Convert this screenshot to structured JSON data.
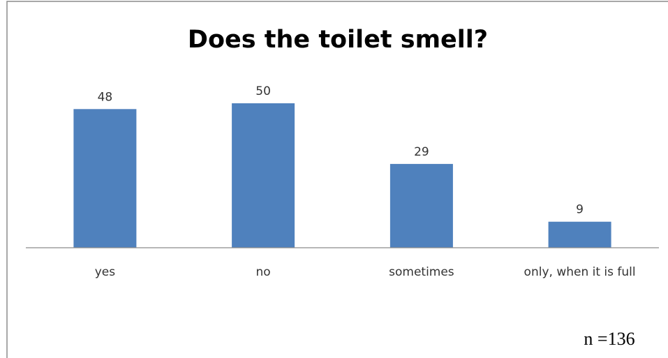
{
  "chart_data": {
    "type": "bar",
    "title": "Does the toilet smell?",
    "categories": [
      "yes",
      "no",
      "sometimes",
      "only, when it is full"
    ],
    "values": [
      48,
      50,
      29,
      9
    ],
    "ylim": [
      0,
      57
    ],
    "grid": false,
    "bar_color": "#4F81BD",
    "annotation": "n =136"
  }
}
